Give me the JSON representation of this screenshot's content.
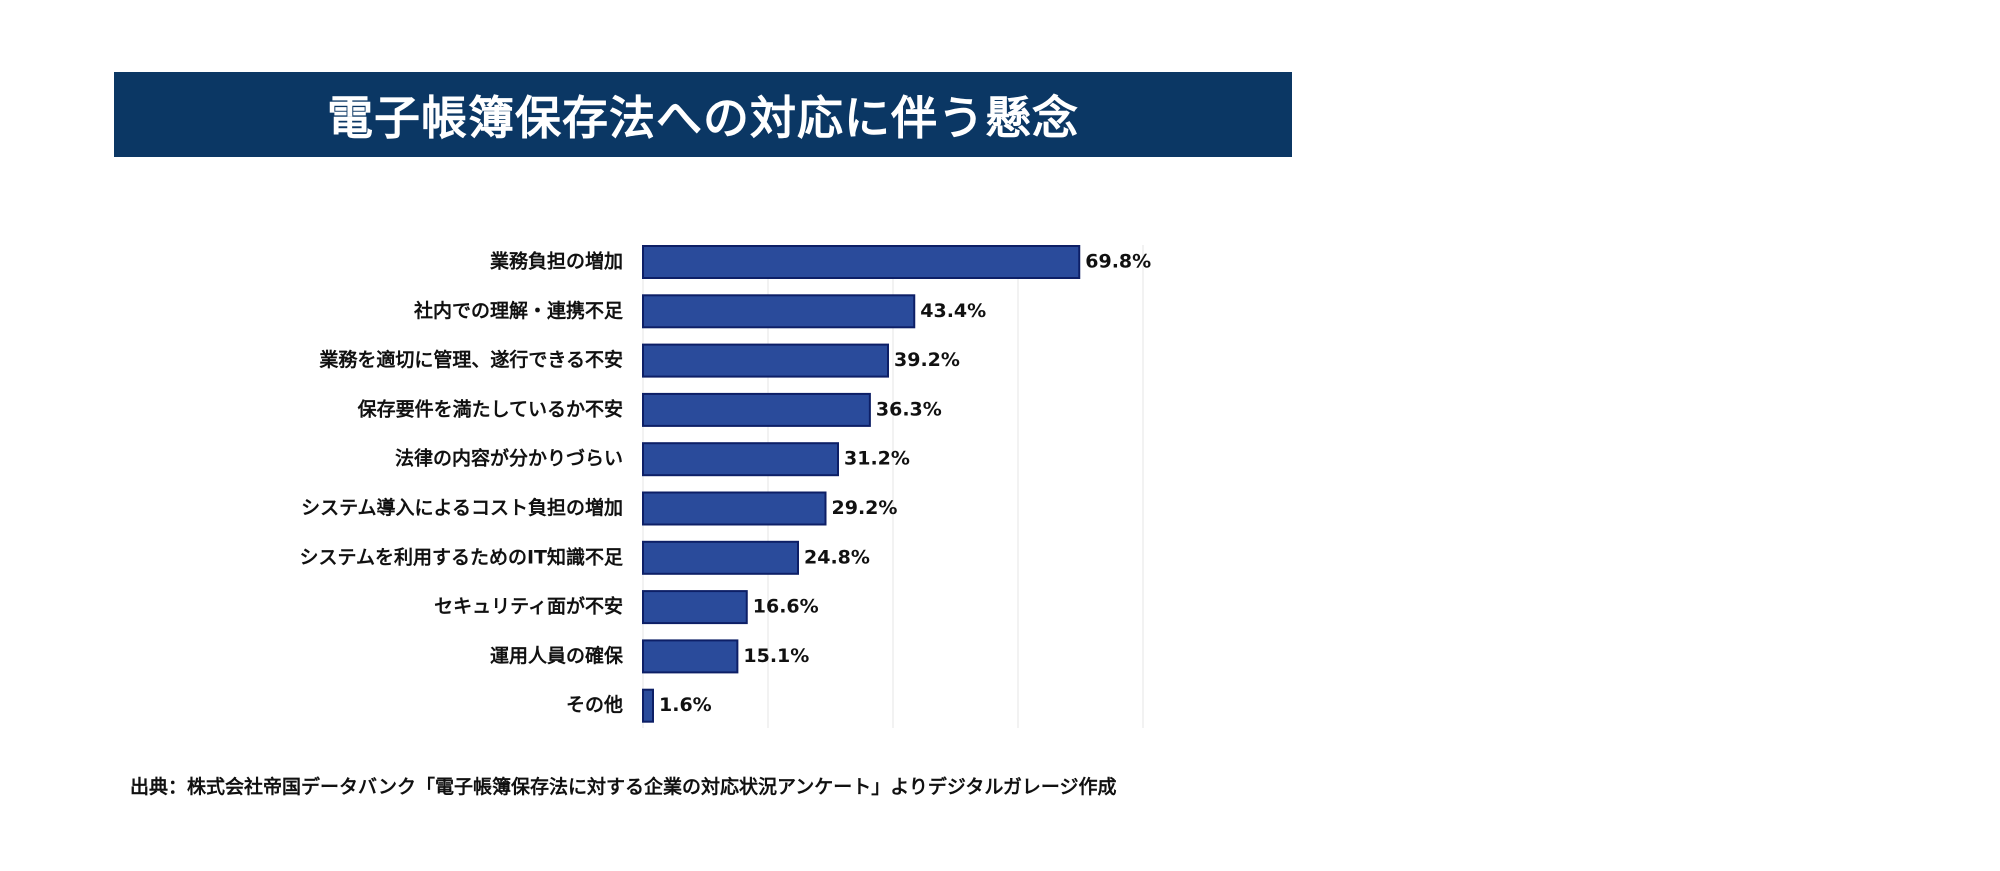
{
  "title": "電子帳簿保存法への対応に伴う懸念",
  "source": "出典：株式会社帝国データバンク「電子帳簿保存法に対する企業の対応状況アンケート」よりデジタルガレージ作成",
  "colors": {
    "title_bg": "#0b3764",
    "bar_fill": "#2a4b9b",
    "bar_stroke": "#0d1f66",
    "text": "#111111",
    "grid": "#e6e6e6"
  },
  "chart_data": {
    "type": "bar",
    "orientation": "horizontal",
    "categories": [
      "業務負担の増加",
      "社内での理解・連携不足",
      "業務を適切に管理、遂行できる不安",
      "保存要件を満たしているか不安",
      "法律の内容が分かりづらい",
      "システム導入によるコスト負担の増加",
      "システムを利用するためのIT知識不足",
      "セキュリティ面が不安",
      "運用人員の確保",
      "その他"
    ],
    "values": [
      69.8,
      43.4,
      39.2,
      36.3,
      31.2,
      29.2,
      24.8,
      16.6,
      15.1,
      1.6
    ],
    "value_labels": [
      "69.8%",
      "43.4%",
      "39.2%",
      "36.3%",
      "31.2%",
      "29.2%",
      "24.8%",
      "16.6%",
      "15.1%",
      "1.6%"
    ],
    "xlim": [
      0,
      80
    ],
    "grid": true
  }
}
